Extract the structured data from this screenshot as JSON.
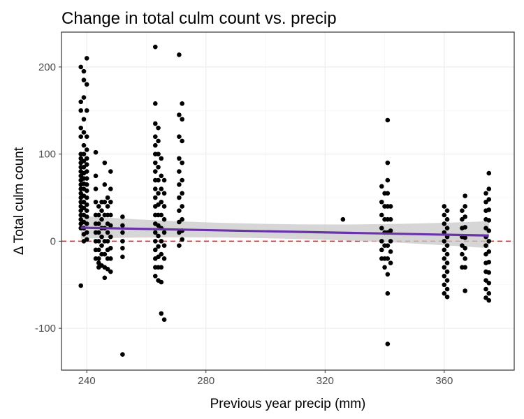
{
  "chart_data": {
    "type": "scatter",
    "title": "Change in total culm count vs. precip",
    "xlabel": "Previous year precip (mm)",
    "ylabel": "Δ Total culm count",
    "xlim": [
      231.5,
      383.5
    ],
    "ylim": [
      -148,
      240
    ],
    "x_ticks": [
      240,
      280,
      320,
      360
    ],
    "x_tick_labels": [
      "240",
      "280",
      "320",
      "360"
    ],
    "y_ticks": [
      -100,
      0,
      100,
      200
    ],
    "y_tick_labels": [
      "-100",
      "0",
      "100",
      "200"
    ],
    "grid": true,
    "legend": "none",
    "reference_line": {
      "y": 0,
      "style": "dashed",
      "color": "#e41a1c"
    },
    "trend": {
      "method": "linear",
      "x_range": [
        238,
        375
      ],
      "y_start": 15.5,
      "y_end": 6.5,
      "ci_lower_start": 3,
      "ci_upper_start": 29,
      "ci_lower_mid": 4.5,
      "ci_upper_mid": 17,
      "ci_lower_end": -8,
      "ci_upper_end": 23,
      "line_color": "#6a33a8",
      "band_color": "#c8c8c8"
    },
    "point_color": "#000000",
    "points": [
      [
        238,
        200
      ],
      [
        238,
        160
      ],
      [
        238,
        150
      ],
      [
        238,
        130
      ],
      [
        238,
        120
      ],
      [
        238,
        100
      ],
      [
        238,
        95
      ],
      [
        238,
        90
      ],
      [
        238,
        85
      ],
      [
        238,
        80
      ],
      [
        238,
        75
      ],
      [
        238,
        70
      ],
      [
        238,
        65
      ],
      [
        238,
        60
      ],
      [
        238,
        55
      ],
      [
        238,
        50
      ],
      [
        238,
        45
      ],
      [
        238,
        40
      ],
      [
        238,
        35
      ],
      [
        238,
        30
      ],
      [
        238,
        25
      ],
      [
        238,
        20
      ],
      [
        238,
        15
      ],
      [
        238,
        -51
      ],
      [
        239,
        195
      ],
      [
        239,
        185
      ],
      [
        239,
        165
      ],
      [
        239,
        140
      ],
      [
        239,
        125
      ],
      [
        239,
        110
      ],
      [
        239,
        100
      ],
      [
        239,
        92
      ],
      [
        239,
        85
      ],
      [
        239,
        78
      ],
      [
        239,
        72
      ],
      [
        239,
        66
      ],
      [
        239,
        60
      ],
      [
        239,
        52
      ],
      [
        239,
        45
      ],
      [
        239,
        38
      ],
      [
        239,
        30
      ],
      [
        239,
        22
      ],
      [
        239,
        15
      ],
      [
        239,
        8
      ],
      [
        239,
        0
      ],
      [
        240,
        210
      ],
      [
        240,
        180
      ],
      [
        240,
        150
      ],
      [
        240,
        120
      ],
      [
        240,
        105
      ],
      [
        240,
        95
      ],
      [
        240,
        88
      ],
      [
        240,
        80
      ],
      [
        240,
        72
      ],
      [
        240,
        65
      ],
      [
        240,
        58
      ],
      [
        240,
        50
      ],
      [
        240,
        42
      ],
      [
        240,
        35
      ],
      [
        240,
        28
      ],
      [
        240,
        20
      ],
      [
        240,
        10
      ],
      [
        240,
        2
      ],
      [
        243,
        102
      ],
      [
        243,
        75
      ],
      [
        243,
        60
      ],
      [
        243,
        45
      ],
      [
        243,
        30
      ],
      [
        243,
        20
      ],
      [
        243,
        10
      ],
      [
        243,
        0
      ],
      [
        243,
        -10
      ],
      [
        243,
        -20
      ],
      [
        244,
        40
      ],
      [
        244,
        30
      ],
      [
        244,
        20
      ],
      [
        244,
        10
      ],
      [
        244,
        0
      ],
      [
        244,
        -10
      ],
      [
        244,
        -20
      ],
      [
        244,
        -25
      ],
      [
        244,
        -30
      ],
      [
        245,
        45
      ],
      [
        245,
        35
      ],
      [
        245,
        25
      ],
      [
        245,
        15
      ],
      [
        245,
        5
      ],
      [
        245,
        -5
      ],
      [
        245,
        -15
      ],
      [
        245,
        -28
      ],
      [
        246,
        90
      ],
      [
        246,
        65
      ],
      [
        246,
        45
      ],
      [
        246,
        30
      ],
      [
        246,
        15
      ],
      [
        246,
        0
      ],
      [
        246,
        -15
      ],
      [
        246,
        -30
      ],
      [
        246,
        -42
      ],
      [
        247,
        50
      ],
      [
        247,
        40
      ],
      [
        247,
        30
      ],
      [
        247,
        20
      ],
      [
        247,
        10
      ],
      [
        247,
        0
      ],
      [
        247,
        -10
      ],
      [
        247,
        -20
      ],
      [
        247,
        -32
      ],
      [
        248,
        80
      ],
      [
        248,
        60
      ],
      [
        248,
        45
      ],
      [
        248,
        30
      ],
      [
        248,
        18
      ],
      [
        248,
        5
      ],
      [
        248,
        -8
      ],
      [
        248,
        -20
      ],
      [
        248,
        -35
      ],
      [
        252,
        28
      ],
      [
        252,
        18
      ],
      [
        252,
        10
      ],
      [
        252,
        0
      ],
      [
        252,
        -8
      ],
      [
        252,
        -18
      ],
      [
        252,
        -130
      ],
      [
        263,
        223
      ],
      [
        263,
        158
      ],
      [
        263,
        135
      ],
      [
        263,
        120
      ],
      [
        263,
        110
      ],
      [
        263,
        100
      ],
      [
        263,
        90
      ],
      [
        263,
        80
      ],
      [
        263,
        70
      ],
      [
        263,
        60
      ],
      [
        263,
        50
      ],
      [
        263,
        40
      ],
      [
        263,
        30
      ],
      [
        263,
        20
      ],
      [
        263,
        10
      ],
      [
        263,
        0
      ],
      [
        263,
        -10
      ],
      [
        263,
        -20
      ],
      [
        263,
        -30
      ],
      [
        263,
        -40
      ],
      [
        264,
        130
      ],
      [
        264,
        115
      ],
      [
        264,
        100
      ],
      [
        264,
        85
      ],
      [
        264,
        70
      ],
      [
        264,
        55
      ],
      [
        264,
        42
      ],
      [
        264,
        30
      ],
      [
        264,
        18
      ],
      [
        264,
        6
      ],
      [
        264,
        -6
      ],
      [
        264,
        -18
      ],
      [
        264,
        -30
      ],
      [
        264,
        -45
      ],
      [
        265,
        95
      ],
      [
        265,
        75
      ],
      [
        265,
        60
      ],
      [
        265,
        45
      ],
      [
        265,
        30
      ],
      [
        265,
        15
      ],
      [
        265,
        0
      ],
      [
        265,
        -15
      ],
      [
        265,
        -30
      ],
      [
        265,
        -47
      ],
      [
        265,
        -83
      ],
      [
        266,
        70
      ],
      [
        266,
        55
      ],
      [
        266,
        40
      ],
      [
        266,
        25
      ],
      [
        266,
        10
      ],
      [
        266,
        -5
      ],
      [
        266,
        -20
      ],
      [
        266,
        -90
      ],
      [
        271,
        214
      ],
      [
        271,
        145
      ],
      [
        271,
        120
      ],
      [
        271,
        95
      ],
      [
        271,
        80
      ],
      [
        271,
        65
      ],
      [
        271,
        50
      ],
      [
        271,
        35
      ],
      [
        271,
        22
      ],
      [
        271,
        10
      ],
      [
        271,
        -5
      ],
      [
        272,
        158
      ],
      [
        272,
        140
      ],
      [
        272,
        115
      ],
      [
        272,
        90
      ],
      [
        272,
        70
      ],
      [
        272,
        55
      ],
      [
        272,
        40
      ],
      [
        272,
        25
      ],
      [
        272,
        12
      ],
      [
        272,
        2
      ],
      [
        326,
        25
      ],
      [
        339,
        63
      ],
      [
        339,
        45
      ],
      [
        339,
        30
      ],
      [
        339,
        15
      ],
      [
        339,
        0
      ],
      [
        339,
        -10
      ],
      [
        339,
        -20
      ],
      [
        340,
        55
      ],
      [
        340,
        40
      ],
      [
        340,
        25
      ],
      [
        340,
        10
      ],
      [
        340,
        -5
      ],
      [
        340,
        -20
      ],
      [
        340,
        -30
      ],
      [
        341,
        139
      ],
      [
        341,
        90
      ],
      [
        341,
        70
      ],
      [
        341,
        55
      ],
      [
        341,
        40
      ],
      [
        341,
        25
      ],
      [
        341,
        10
      ],
      [
        341,
        -5
      ],
      [
        341,
        -20
      ],
      [
        341,
        -38
      ],
      [
        341,
        -60
      ],
      [
        341,
        -118
      ],
      [
        342,
        40
      ],
      [
        342,
        25
      ],
      [
        342,
        12
      ],
      [
        342,
        0
      ],
      [
        342,
        -12
      ],
      [
        342,
        -25
      ],
      [
        360,
        40
      ],
      [
        360,
        30
      ],
      [
        360,
        20
      ],
      [
        360,
        10
      ],
      [
        360,
        0
      ],
      [
        360,
        -10
      ],
      [
        360,
        -20
      ],
      [
        360,
        -30
      ],
      [
        360,
        -40
      ],
      [
        360,
        -50
      ],
      [
        360,
        -60
      ],
      [
        361,
        35
      ],
      [
        361,
        25
      ],
      [
        361,
        15
      ],
      [
        361,
        5
      ],
      [
        361,
        -5
      ],
      [
        361,
        -15
      ],
      [
        361,
        -25
      ],
      [
        361,
        -35
      ],
      [
        361,
        -45
      ],
      [
        361,
        -55
      ],
      [
        361,
        -64
      ],
      [
        366,
        35
      ],
      [
        366,
        25
      ],
      [
        366,
        15
      ],
      [
        366,
        5
      ],
      [
        366,
        -5
      ],
      [
        366,
        -15
      ],
      [
        366,
        -30
      ],
      [
        367,
        52
      ],
      [
        367,
        40
      ],
      [
        367,
        28
      ],
      [
        367,
        16
      ],
      [
        367,
        4
      ],
      [
        367,
        -8
      ],
      [
        367,
        -20
      ],
      [
        367,
        -30
      ],
      [
        367,
        -57
      ],
      [
        374,
        55
      ],
      [
        374,
        45
      ],
      [
        374,
        35
      ],
      [
        374,
        25
      ],
      [
        374,
        15
      ],
      [
        374,
        5
      ],
      [
        374,
        -5
      ],
      [
        374,
        -15
      ],
      [
        374,
        -25
      ],
      [
        374,
        -35
      ],
      [
        374,
        -45
      ],
      [
        374,
        -55
      ],
      [
        374,
        -65
      ],
      [
        375,
        78
      ],
      [
        375,
        60
      ],
      [
        375,
        48
      ],
      [
        375,
        36
      ],
      [
        375,
        24
      ],
      [
        375,
        12
      ],
      [
        375,
        0
      ],
      [
        375,
        -12
      ],
      [
        375,
        -24
      ],
      [
        375,
        -36
      ],
      [
        375,
        -48
      ],
      [
        375,
        -60
      ],
      [
        375,
        -68
      ]
    ]
  }
}
